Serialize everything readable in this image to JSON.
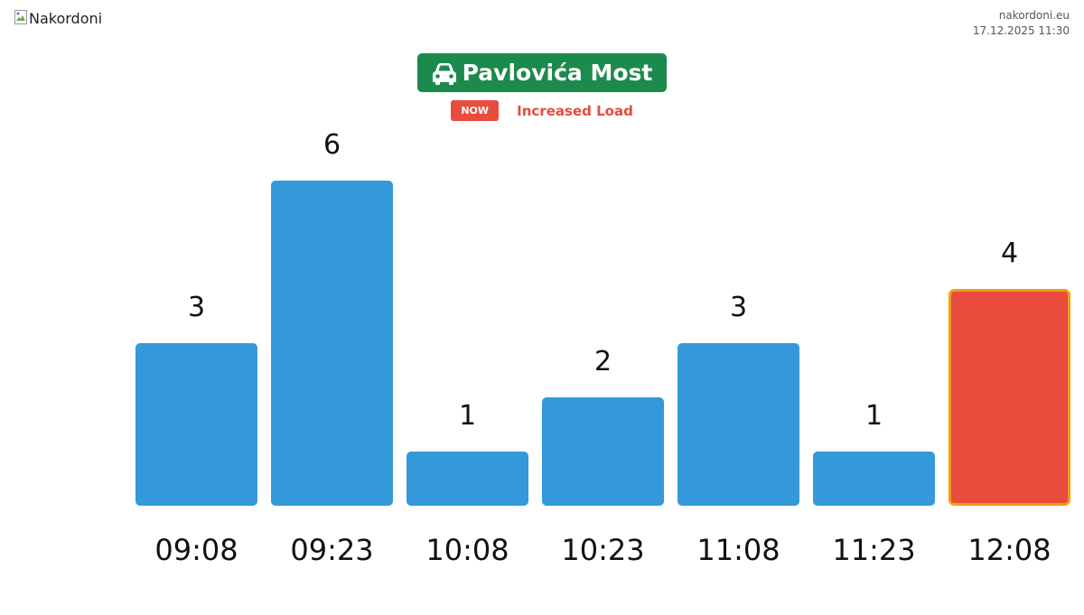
{
  "header": {
    "logo_alt": "Nakordoni",
    "site": "nakordoni.eu",
    "timestamp": "17.12.2025 11:30"
  },
  "title": {
    "text": "Pavlovića Most",
    "icon": "car-icon",
    "color": "#1c8a4c"
  },
  "status": {
    "badge": "NOW",
    "text": "Increased Load",
    "color": "#e74c3c"
  },
  "chart_data": {
    "type": "bar",
    "categories": [
      "09:08",
      "09:23",
      "10:08",
      "10:23",
      "11:08",
      "11:23",
      "12:08"
    ],
    "values": [
      3,
      6,
      1,
      2,
      3,
      1,
      4
    ],
    "highlight_index": 6,
    "bar_color": "#3498db",
    "highlight_color": "#e74c3c",
    "highlight_border_color": "#f39c12",
    "title": "",
    "xlabel": "",
    "ylabel": "",
    "grid": false
  }
}
